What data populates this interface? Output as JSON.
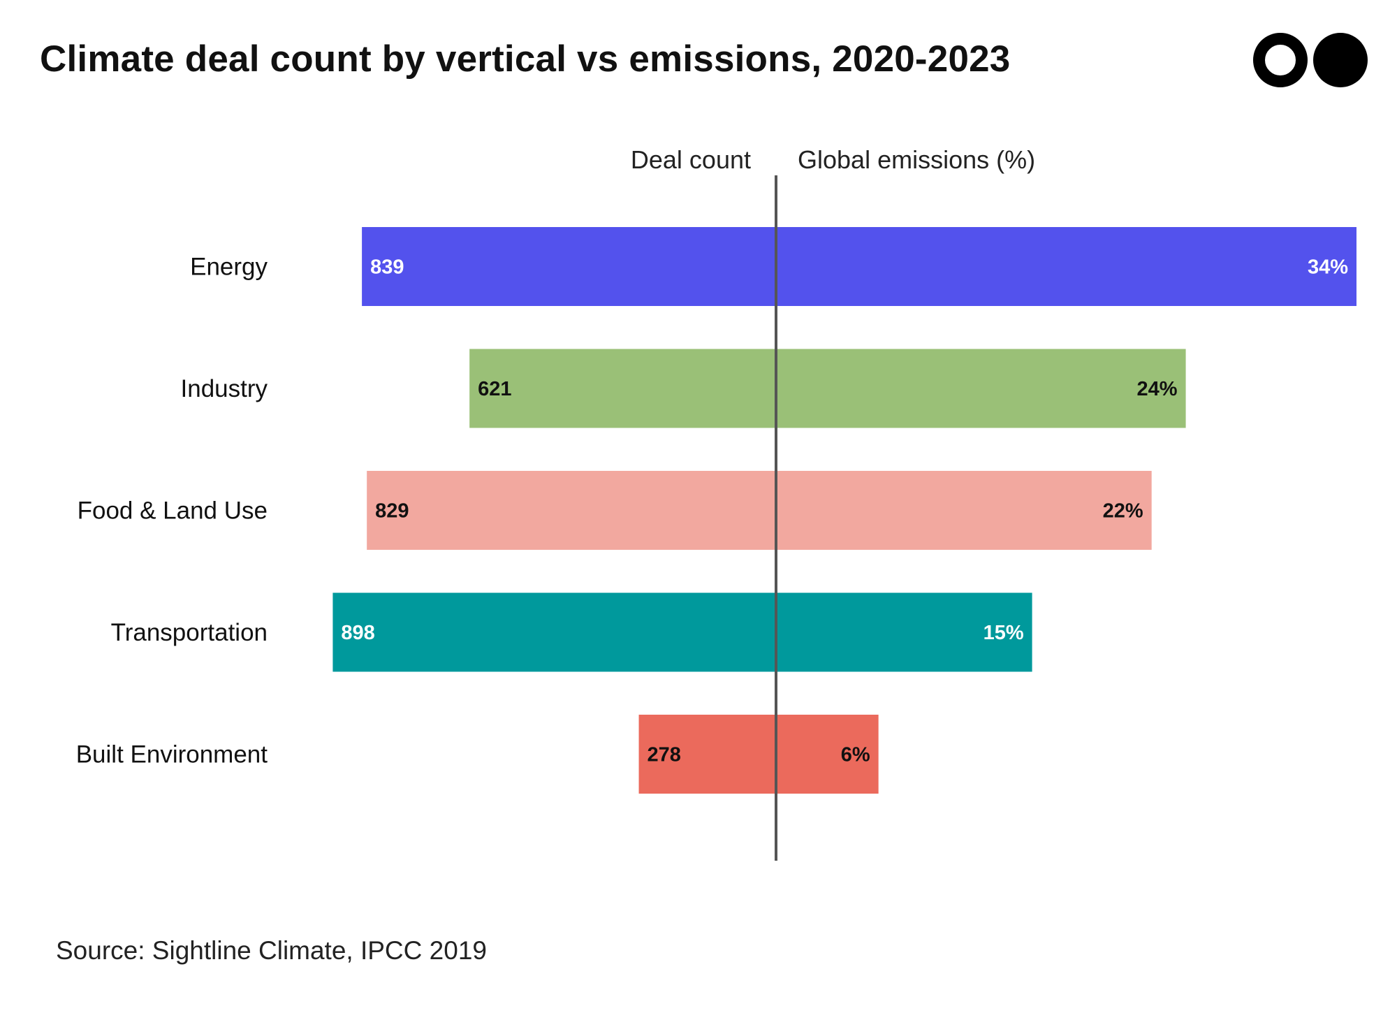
{
  "header": {
    "title": "Climate deal count by vertical vs emissions, 2020-2023"
  },
  "brand": {
    "logo_icon": "two-dots-logo-icon"
  },
  "footer": {
    "source": "Source: Sightline Climate, IPCC 2019"
  },
  "chart_data": {
    "type": "bar",
    "layout": "diverging-horizontal",
    "axis_labels": {
      "left": "Deal count",
      "right": "Global emissions (%)"
    },
    "categories": [
      "Energy",
      "Industry",
      "Food & Land Use",
      "Transportation",
      "Built Environment"
    ],
    "series": [
      {
        "name": "Deal count",
        "side": "left",
        "values": [
          839,
          621,
          829,
          898,
          278
        ],
        "value_labels": [
          "839",
          "621",
          "829",
          "898",
          "278"
        ],
        "max": 900
      },
      {
        "name": "Global emissions (%)",
        "side": "right",
        "values": [
          34,
          24,
          22,
          15,
          6
        ],
        "value_labels": [
          "34%",
          "24%",
          "22%",
          "15%",
          "6%"
        ],
        "max": 34
      }
    ],
    "colors": [
      "#5352ED",
      "#9AC077",
      "#F2A89F",
      "#00999C",
      "#EB6A5C"
    ],
    "label_colors": [
      "#ffffff",
      "#111111",
      "#111111",
      "#ffffff",
      "#111111"
    ],
    "grid": false,
    "legend": "none"
  }
}
